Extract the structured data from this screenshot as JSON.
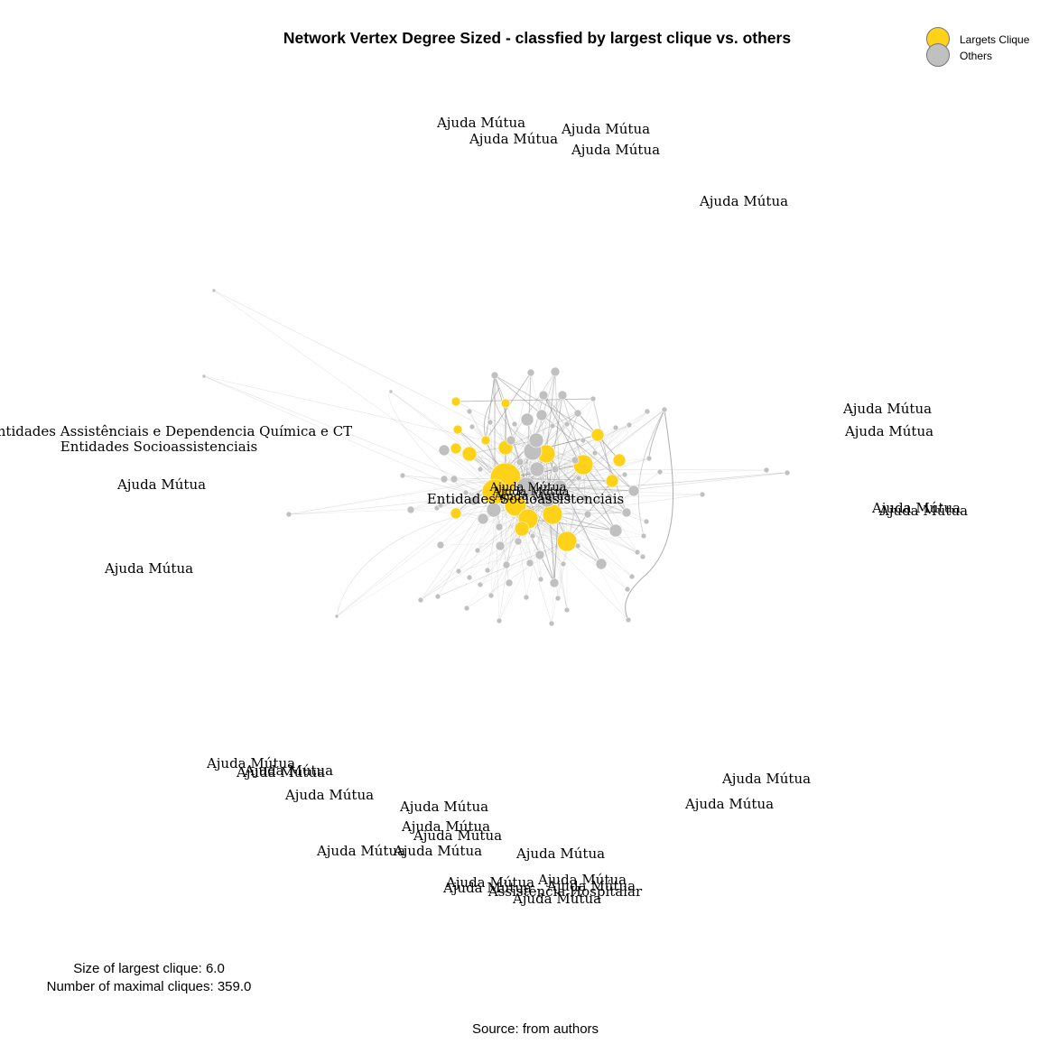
{
  "title": "Network Vertex Degree Sized - classfied by largest clique vs. others",
  "legend": {
    "items": [
      {
        "label": "Largets Clique",
        "color": "#FFD21A"
      },
      {
        "label": "Others",
        "color": "#C0C0C0"
      }
    ]
  },
  "stats": {
    "clique_size": "Size of largest clique: 6.0",
    "maximal_cliques": "Number of maximal cliques: 359.0"
  },
  "source": "Source: from authors",
  "chart_data": {
    "type": "network",
    "title": "Network Vertex Degree Sized - classfied by largest clique vs. others",
    "largest_clique_size": 6.0,
    "maximal_cliques": 359.0,
    "legend_placement": "top-right",
    "colors": {
      "largest_clique": "#FFD21A",
      "others": "#C0C0C0",
      "edge": "#999999"
    },
    "labels": {
      "ajuda": "Ajuda Mútua",
      "entidades": "Entidades Socioassistenciais",
      "entidades_dq": "Entidades Assistênciais e Dependencia Química e CT",
      "hospitalar": "Assistência Hospitalar"
    }
  }
}
